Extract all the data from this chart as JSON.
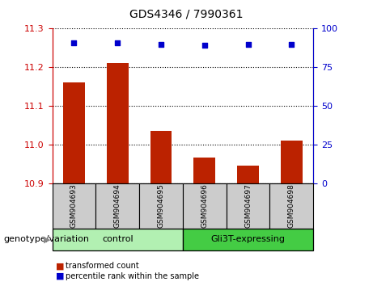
{
  "title": "GDS4346 / 7990361",
  "samples": [
    "GSM904693",
    "GSM904694",
    "GSM904695",
    "GSM904696",
    "GSM904697",
    "GSM904698"
  ],
  "bar_values": [
    11.16,
    11.21,
    11.035,
    10.965,
    10.945,
    11.01
  ],
  "percentile_values": [
    91,
    91,
    90,
    89,
    90,
    90
  ],
  "bar_color": "#bb2200",
  "dot_color": "#0000cc",
  "ylim_left": [
    10.9,
    11.3
  ],
  "ylim_right": [
    0,
    100
  ],
  "yticks_left": [
    10.9,
    11.0,
    11.1,
    11.2,
    11.3
  ],
  "yticks_right": [
    0,
    25,
    50,
    75,
    100
  ],
  "groups": [
    {
      "label": "control",
      "indices": [
        0,
        1,
        2
      ],
      "color": "#b2f0b2"
    },
    {
      "label": "Gli3T-expressing",
      "indices": [
        3,
        4,
        5
      ],
      "color": "#44cc44"
    }
  ],
  "group_label_prefix": "genotype/variation",
  "legend_bar_label": "transformed count",
  "legend_dot_label": "percentile rank within the sample",
  "left_axis_color": "#cc0000",
  "right_axis_color": "#0000cc",
  "bar_bottom": 10.9,
  "tick_area_bg": "#cccccc",
  "title_fontsize": 10,
  "tick_label_fontsize": 6.5,
  "group_label_fontsize": 8,
  "legend_fontsize": 7
}
